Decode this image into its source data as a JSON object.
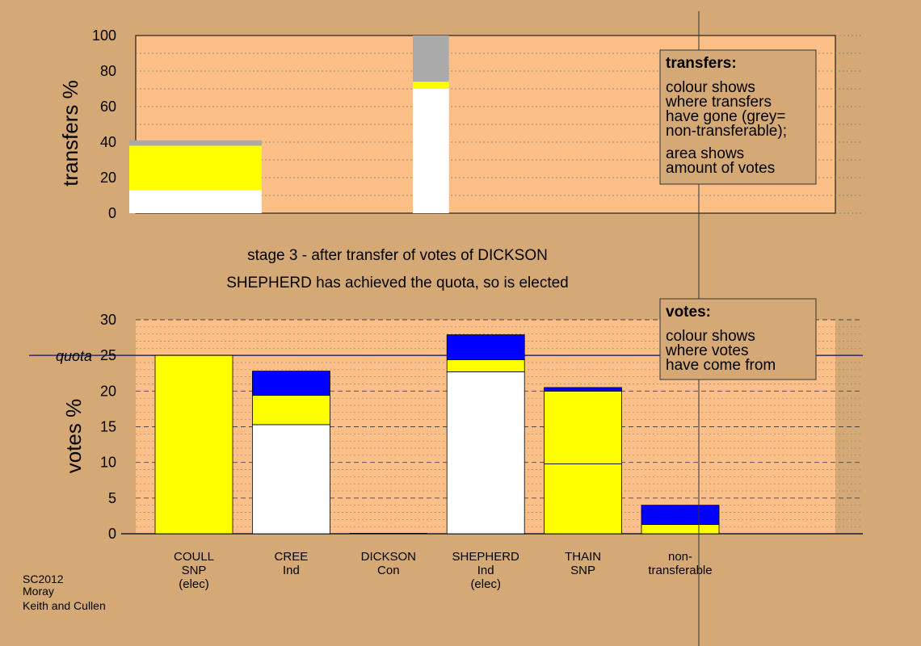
{
  "colors": {
    "background": "#d4a976",
    "plot_bg": "#fdbf88",
    "white": "#ffffff",
    "yellow": "#ffff00",
    "blue": "#0000ff",
    "grey": "#aaaaaa",
    "box_bg": "#d4a976",
    "quota_line": "#2a2a6a"
  },
  "caption": {
    "line1": "stage 3 - after transfer of votes of DICKSON",
    "line2": "SHEPHERD has achieved the quota, so is elected"
  },
  "source": {
    "line1": "SC2012",
    "line2": "Moray",
    "line3": "Keith and Cullen"
  },
  "chart_data": [
    {
      "type": "bar",
      "ylabel": "transfers %",
      "ylim": [
        0,
        100
      ],
      "yticks": [
        0,
        20,
        40,
        60,
        80,
        100
      ],
      "bars": [
        {
          "position": 0,
          "width": 1.1,
          "segments": [
            {
              "color": "white",
              "value": 13
            },
            {
              "color": "yellow",
              "value": 25
            },
            {
              "color": "grey",
              "value": 3
            }
          ]
        },
        {
          "position": 2.5,
          "width": 0.3,
          "segments": [
            {
              "color": "white",
              "value": 70
            },
            {
              "color": "yellow",
              "value": 4
            },
            {
              "color": "grey",
              "value": 26
            }
          ]
        }
      ],
      "legend_box": {
        "title": "transfers:",
        "lines": [
          "colour shows",
          "where transfers",
          "have gone (grey=",
          "non-transferable);"
        ],
        "lines2": [
          "area shows",
          "amount of votes"
        ]
      }
    },
    {
      "type": "bar",
      "ylabel": "votes %",
      "ylim": [
        0,
        30
      ],
      "yticks": [
        0,
        5,
        10,
        15,
        20,
        25,
        30
      ],
      "quota": 25,
      "quota_label": "quota",
      "categories": [
        {
          "name": "COULL",
          "party": "SNP",
          "note": "(elec)"
        },
        {
          "name": "CREE",
          "party": "Ind",
          "note": ""
        },
        {
          "name": "DICKSON",
          "party": "Con",
          "note": ""
        },
        {
          "name": "SHEPHERD",
          "party": "Ind",
          "note": "(elec)"
        },
        {
          "name": "THAIN",
          "party": "SNP",
          "note": ""
        },
        {
          "name": "non-",
          "party": "transferable",
          "note": ""
        }
      ],
      "stacks": [
        [
          {
            "color": "yellow",
            "value": 25
          }
        ],
        [
          {
            "color": "white",
            "value": 15.3
          },
          {
            "color": "yellow",
            "value": 4.1
          },
          {
            "color": "blue",
            "value": 3.4
          }
        ],
        [],
        [
          {
            "color": "white",
            "value": 22.7
          },
          {
            "color": "yellow",
            "value": 1.7
          },
          {
            "color": "blue",
            "value": 3.5
          }
        ],
        [
          {
            "color": "yellow",
            "value": 9.8
          },
          {
            "color": "yellow",
            "value": 10.2
          },
          {
            "color": "blue",
            "value": 0.5
          }
        ],
        [
          {
            "color": "yellow",
            "value": 1.3
          },
          {
            "color": "blue",
            "value": 2.7
          }
        ]
      ],
      "legend_box": {
        "title": "votes:",
        "lines": [
          "colour shows",
          "where votes",
          "have come from"
        ]
      }
    }
  ]
}
